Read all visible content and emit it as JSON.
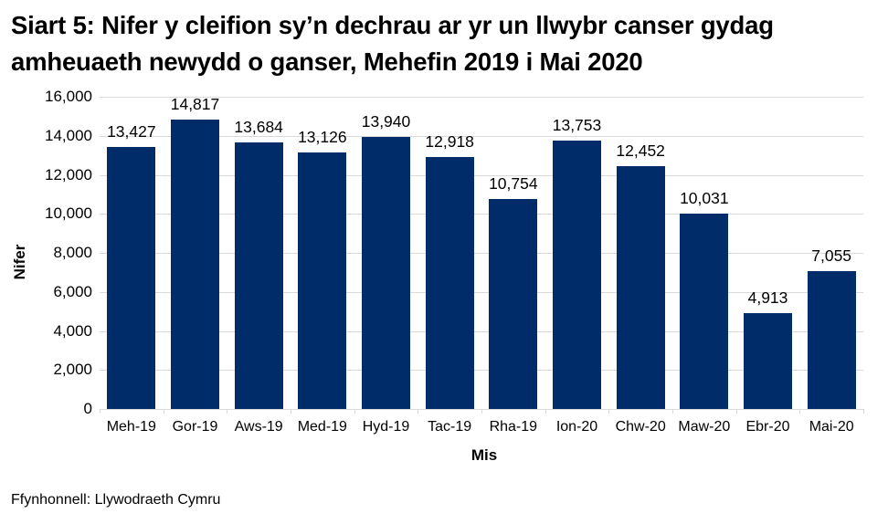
{
  "title": {
    "line1": "Siart 5: Nifer y cleifion sy’n dechrau ar yr un llwybr canser gydag",
    "line2": "amheuaeth newydd o ganser, Mehefin 2019 i Mai 2020"
  },
  "source": "Ffynhonnell: Llywodraeth Cymru",
  "colors": {
    "bar": "#002D6A",
    "grid": "#D9D9D9",
    "text": "#000000"
  },
  "chart_data": {
    "type": "bar",
    "title": "Siart 5: Nifer y cleifion sy’n dechrau ar yr un llwybr canser gydag amheuaeth newydd o ganser, Mehefin 2019 i Mai 2020",
    "xlabel": "Mis",
    "ylabel": "Nifer",
    "ylim": [
      0,
      16000
    ],
    "yticks": [
      "0",
      "2,000",
      "4,000",
      "6,000",
      "8,000",
      "10,000",
      "12,000",
      "14,000",
      "16,000"
    ],
    "grid": true,
    "legend": null,
    "categories": [
      "Meh-19",
      "Gor-19",
      "Aws-19",
      "Med-19",
      "Hyd-19",
      "Tac-19",
      "Rha-19",
      "Ion-20",
      "Chw-20",
      "Maw-20",
      "Ebr-20",
      "Mai-20"
    ],
    "values": [
      13427,
      14817,
      13684,
      13126,
      13940,
      12918,
      10754,
      13753,
      12452,
      10031,
      4913,
      7055
    ],
    "data_labels": [
      "13,427",
      "14,817",
      "13,684",
      "13,126",
      "13,940",
      "12,918",
      "10,754",
      "13,753",
      "12,452",
      "10,031",
      "4,913",
      "7,055"
    ]
  }
}
